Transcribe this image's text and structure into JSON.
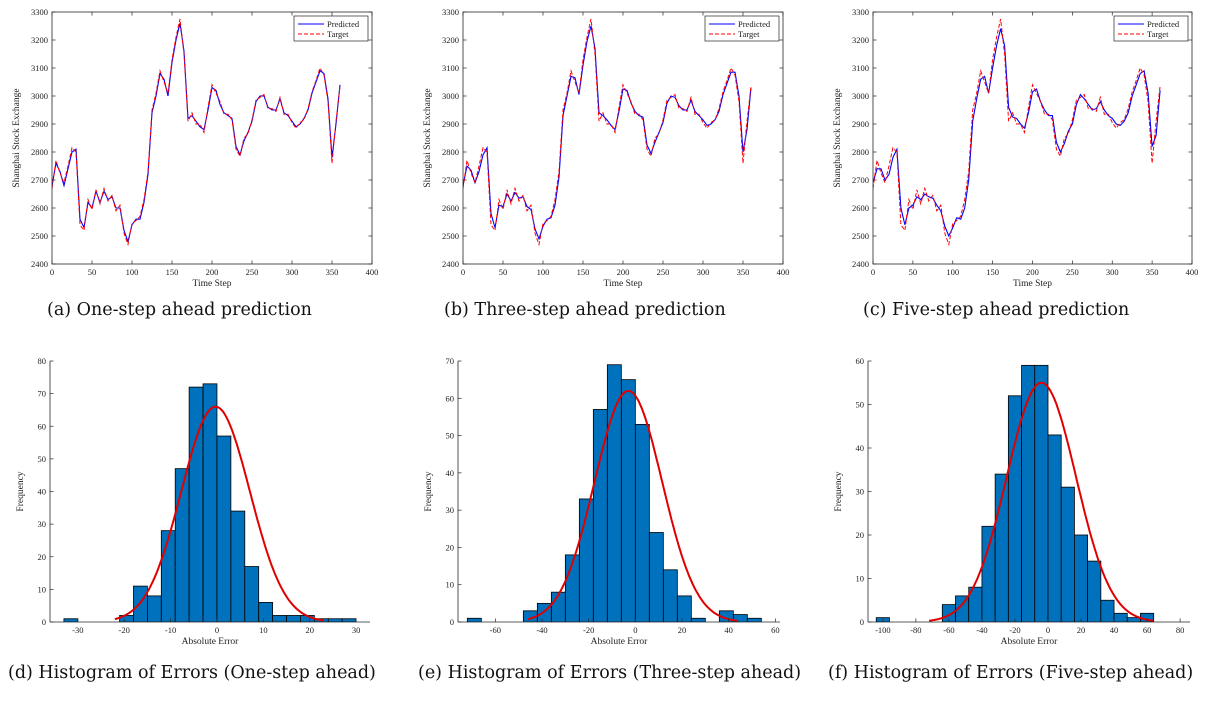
{
  "chart_data": [
    {
      "id": "a",
      "type": "line",
      "caption": "(a) One-step ahead prediction",
      "xlabel": "Time Step",
      "ylabel": "Shanghai Stock Exchange",
      "xlim": [
        0,
        400
      ],
      "ylim": [
        2400,
        3300
      ],
      "xticks": [
        0,
        50,
        100,
        150,
        200,
        250,
        300,
        350,
        400
      ],
      "yticks": [
        2400,
        2500,
        2600,
        2700,
        2800,
        2900,
        3000,
        3100,
        3200,
        3300
      ],
      "legend_position": "top-right",
      "box": true,
      "x": [
        0,
        5,
        10,
        15,
        20,
        25,
        30,
        35,
        40,
        45,
        50,
        55,
        60,
        65,
        70,
        75,
        80,
        85,
        90,
        95,
        100,
        105,
        110,
        115,
        120,
        125,
        130,
        135,
        140,
        145,
        150,
        155,
        160,
        165,
        170,
        175,
        180,
        185,
        190,
        195,
        200,
        205,
        210,
        215,
        220,
        225,
        230,
        235,
        240,
        245,
        250,
        255,
        260,
        265,
        270,
        275,
        280,
        285,
        290,
        295,
        300,
        305,
        310,
        315,
        320,
        325,
        330,
        335,
        340,
        345,
        350,
        355,
        360
      ],
      "series": [
        {
          "name": "Predicted",
          "color": "#0000ff",
          "dash": "",
          "values": [
            2680,
            2760,
            2730,
            2680,
            2740,
            2800,
            2810,
            2560,
            2530,
            2620,
            2600,
            2660,
            2620,
            2660,
            2630,
            2640,
            2600,
            2600,
            2520,
            2480,
            2540,
            2560,
            2560,
            2620,
            2720,
            2940,
            3000,
            3080,
            3060,
            3000,
            3120,
            3200,
            3260,
            3160,
            2920,
            2930,
            2910,
            2890,
            2880,
            2950,
            3030,
            3020,
            2970,
            2940,
            2930,
            2920,
            2820,
            2790,
            2840,
            2870,
            2910,
            2980,
            3000,
            3000,
            2960,
            2950,
            2950,
            2990,
            2940,
            2930,
            2910,
            2890,
            2900,
            2920,
            2950,
            3010,
            3050,
            3090,
            3080,
            2990,
            2780,
            2900,
            3040
          ]
        },
        {
          "name": "Target",
          "color": "#ff0000",
          "dash": "4,2",
          "values": [
            2670,
            2770,
            2725,
            2690,
            2750,
            2815,
            2800,
            2540,
            2520,
            2630,
            2595,
            2665,
            2615,
            2670,
            2625,
            2645,
            2590,
            2610,
            2510,
            2470,
            2545,
            2555,
            2570,
            2630,
            2730,
            2950,
            3010,
            3090,
            3050,
            3010,
            3130,
            3210,
            3275,
            3150,
            2910,
            2940,
            2900,
            2900,
            2870,
            2960,
            3040,
            3010,
            2980,
            2935,
            2935,
            2915,
            2810,
            2785,
            2850,
            2865,
            2915,
            2985,
            2995,
            3005,
            2955,
            2955,
            2945,
            2995,
            2935,
            2935,
            2905,
            2885,
            2905,
            2915,
            2955,
            3015,
            3055,
            3100,
            3075,
            2980,
            2760,
            2910,
            3035
          ]
        }
      ]
    },
    {
      "id": "b",
      "type": "line",
      "caption": "(b) Three-step ahead prediction",
      "xlabel": "Time Step",
      "ylabel": "Shanghai Stock Exchange",
      "xlim": [
        0,
        400
      ],
      "ylim": [
        2400,
        3300
      ],
      "xticks": [
        0,
        50,
        100,
        150,
        200,
        250,
        300,
        350,
        400
      ],
      "yticks": [
        2400,
        2500,
        2600,
        2700,
        2800,
        2900,
        3000,
        3100,
        3200,
        3300
      ],
      "legend_position": "top-right",
      "box": true,
      "x": [
        0,
        5,
        10,
        15,
        20,
        25,
        30,
        35,
        40,
        45,
        50,
        55,
        60,
        65,
        70,
        75,
        80,
        85,
        90,
        95,
        100,
        105,
        110,
        115,
        120,
        125,
        130,
        135,
        140,
        145,
        150,
        155,
        160,
        165,
        170,
        175,
        180,
        185,
        190,
        195,
        200,
        205,
        210,
        215,
        220,
        225,
        230,
        235,
        240,
        245,
        250,
        255,
        260,
        265,
        270,
        275,
        280,
        285,
        290,
        295,
        300,
        305,
        310,
        315,
        320,
        325,
        330,
        335,
        340,
        345,
        350,
        355,
        360
      ],
      "series": [
        {
          "name": "Predicted",
          "color": "#0000ff",
          "dash": "",
          "values": [
            2680,
            2750,
            2735,
            2690,
            2730,
            2790,
            2815,
            2580,
            2530,
            2610,
            2605,
            2650,
            2625,
            2655,
            2635,
            2640,
            2605,
            2595,
            2525,
            2490,
            2535,
            2560,
            2565,
            2610,
            2710,
            2930,
            3000,
            3070,
            3065,
            3005,
            3110,
            3195,
            3250,
            3170,
            2940,
            2930,
            2915,
            2895,
            2880,
            2945,
            3025,
            3020,
            2975,
            2945,
            2930,
            2925,
            2825,
            2795,
            2835,
            2870,
            2905,
            2975,
            3000,
            2995,
            2965,
            2950,
            2950,
            2985,
            2945,
            2930,
            2915,
            2895,
            2900,
            2915,
            2945,
            3005,
            3045,
            3085,
            3085,
            3000,
            2800,
            2880,
            3030
          ]
        },
        {
          "name": "Target",
          "color": "#ff0000",
          "dash": "4,2",
          "values": [
            2670,
            2770,
            2725,
            2690,
            2750,
            2815,
            2800,
            2540,
            2520,
            2630,
            2595,
            2665,
            2615,
            2670,
            2625,
            2645,
            2590,
            2610,
            2510,
            2470,
            2545,
            2555,
            2570,
            2630,
            2730,
            2950,
            3010,
            3090,
            3050,
            3010,
            3130,
            3210,
            3275,
            3150,
            2910,
            2940,
            2900,
            2900,
            2870,
            2960,
            3040,
            3010,
            2980,
            2935,
            2935,
            2915,
            2810,
            2785,
            2850,
            2865,
            2915,
            2985,
            2995,
            3005,
            2955,
            2955,
            2945,
            2995,
            2935,
            2935,
            2905,
            2885,
            2905,
            2915,
            2955,
            3015,
            3055,
            3100,
            3075,
            2980,
            2760,
            2910,
            3035
          ]
        }
      ]
    },
    {
      "id": "c",
      "type": "line",
      "caption": "(c) Five-step ahead prediction",
      "xlabel": "Time Step",
      "ylabel": "Shanghai Stock Exchange",
      "xlim": [
        0,
        400
      ],
      "ylim": [
        2400,
        3300
      ],
      "xticks": [
        0,
        50,
        100,
        150,
        200,
        250,
        300,
        350,
        400
      ],
      "yticks": [
        2400,
        2500,
        2600,
        2700,
        2800,
        2900,
        3000,
        3100,
        3200,
        3300
      ],
      "legend_position": "top-right",
      "box": true,
      "x": [
        0,
        5,
        10,
        15,
        20,
        25,
        30,
        35,
        40,
        45,
        50,
        55,
        60,
        65,
        70,
        75,
        80,
        85,
        90,
        95,
        100,
        105,
        110,
        115,
        120,
        125,
        130,
        135,
        140,
        145,
        150,
        155,
        160,
        165,
        170,
        175,
        180,
        185,
        190,
        195,
        200,
        205,
        210,
        215,
        220,
        225,
        230,
        235,
        240,
        245,
        250,
        255,
        260,
        265,
        270,
        275,
        280,
        285,
        290,
        295,
        300,
        305,
        310,
        315,
        320,
        325,
        330,
        335,
        340,
        345,
        350,
        355,
        360
      ],
      "series": [
        {
          "name": "Predicted",
          "color": "#0000ff",
          "dash": "",
          "values": [
            2690,
            2740,
            2740,
            2700,
            2720,
            2780,
            2810,
            2600,
            2540,
            2600,
            2610,
            2640,
            2630,
            2650,
            2640,
            2635,
            2610,
            2590,
            2535,
            2500,
            2530,
            2565,
            2560,
            2600,
            2700,
            2910,
            2990,
            3060,
            3070,
            3010,
            3100,
            3180,
            3240,
            3180,
            2960,
            2925,
            2920,
            2900,
            2885,
            2940,
            3015,
            3025,
            2980,
            2950,
            2930,
            2930,
            2835,
            2800,
            2830,
            2875,
            2900,
            2970,
            3005,
            2990,
            2970,
            2950,
            2955,
            2980,
            2950,
            2930,
            2920,
            2900,
            2895,
            2910,
            2940,
            3000,
            3040,
            3080,
            3090,
            3010,
            2820,
            2860,
            3020
          ]
        },
        {
          "name": "Target",
          "color": "#ff0000",
          "dash": "4,2",
          "values": [
            2670,
            2770,
            2725,
            2690,
            2750,
            2815,
            2800,
            2540,
            2520,
            2630,
            2595,
            2665,
            2615,
            2670,
            2625,
            2645,
            2590,
            2610,
            2510,
            2470,
            2545,
            2555,
            2570,
            2630,
            2730,
            2950,
            3010,
            3090,
            3050,
            3010,
            3130,
            3210,
            3275,
            3150,
            2910,
            2940,
            2900,
            2900,
            2870,
            2960,
            3040,
            3010,
            2980,
            2935,
            2935,
            2915,
            2810,
            2785,
            2850,
            2865,
            2915,
            2985,
            2995,
            3005,
            2955,
            2955,
            2945,
            2995,
            2935,
            2935,
            2905,
            2885,
            2905,
            2915,
            2955,
            3015,
            3055,
            3100,
            3075,
            2980,
            2760,
            2910,
            3035
          ]
        }
      ]
    },
    {
      "id": "d",
      "type": "bar",
      "caption": "(d) Histogram of Errors (One-step ahead)",
      "xlabel": "Absolute Error",
      "ylabel": "Frequency",
      "xlim": [
        -36,
        33
      ],
      "ylim": [
        0,
        80
      ],
      "xticks": [
        -30,
        -20,
        -10,
        0,
        10,
        20,
        30
      ],
      "yticks": [
        0,
        10,
        20,
        30,
        40,
        50,
        60,
        70,
        80
      ],
      "box": false,
      "bar_color": "#0072bd",
      "bins": [
        [
          -33,
          -30,
          1
        ],
        [
          -21,
          -18,
          2
        ],
        [
          -18,
          -15,
          11
        ],
        [
          -15,
          -12,
          8
        ],
        [
          -12,
          -9,
          28
        ],
        [
          -9,
          -6,
          47
        ],
        [
          -6,
          -3,
          72
        ],
        [
          -3,
          0,
          73
        ],
        [
          0,
          3,
          57
        ],
        [
          3,
          6,
          34
        ],
        [
          6,
          9,
          17
        ],
        [
          9,
          12,
          6
        ],
        [
          12,
          15,
          2
        ],
        [
          15,
          18,
          2
        ],
        [
          18,
          21,
          2
        ],
        [
          21,
          24,
          1
        ],
        [
          24,
          27,
          1
        ],
        [
          27,
          30,
          1
        ]
      ],
      "fit": {
        "color": "#e00000",
        "peak": 66,
        "mean": -0.3,
        "sd": 7.4,
        "range": [
          -22,
          23
        ]
      }
    },
    {
      "id": "e",
      "type": "bar",
      "caption": "(e) Histogram of Errors (Three-step ahead)",
      "xlabel": "Absolute Error",
      "ylabel": "Frequency",
      "xlim": [
        -76,
        62
      ],
      "ylim": [
        0,
        70
      ],
      "xticks": [
        -60,
        -40,
        -20,
        0,
        20,
        40,
        60
      ],
      "yticks": [
        0,
        10,
        20,
        30,
        40,
        50,
        60,
        70
      ],
      "box": false,
      "bar_color": "#0072bd",
      "bins": [
        [
          -72,
          -66,
          1
        ],
        [
          -48,
          -42,
          3
        ],
        [
          -42,
          -36,
          5
        ],
        [
          -36,
          -30,
          8
        ],
        [
          -30,
          -24,
          18
        ],
        [
          -24,
          -18,
          33
        ],
        [
          -18,
          -12,
          57
        ],
        [
          -12,
          -6,
          69
        ],
        [
          -6,
          0,
          65
        ],
        [
          0,
          6,
          53
        ],
        [
          6,
          12,
          24
        ],
        [
          12,
          18,
          14
        ],
        [
          18,
          24,
          7
        ],
        [
          24,
          30,
          1
        ],
        [
          36,
          42,
          3
        ],
        [
          42,
          48,
          2
        ],
        [
          48,
          54,
          1
        ]
      ],
      "fit": {
        "color": "#e00000",
        "peak": 62,
        "mean": -3,
        "sd": 14.5,
        "range": [
          -46,
          44
        ]
      }
    },
    {
      "id": "f",
      "type": "bar",
      "caption": "(f) Histogram of Errors (Five-step ahead)",
      "xlabel": "Absolute Error",
      "ylabel": "Frequency",
      "xlim": [
        -109,
        86
      ],
      "ylim": [
        0,
        60
      ],
      "xticks": [
        -100,
        -80,
        -60,
        -40,
        -20,
        0,
        20,
        40,
        60,
        80
      ],
      "yticks": [
        0,
        10,
        20,
        30,
        40,
        50,
        60
      ],
      "box": false,
      "bar_color": "#0072bd",
      "bins": [
        [
          -104,
          -96,
          1
        ],
        [
          -64,
          -56,
          4
        ],
        [
          -56,
          -48,
          6
        ],
        [
          -48,
          -40,
          8
        ],
        [
          -40,
          -32,
          22
        ],
        [
          -32,
          -24,
          34
        ],
        [
          -24,
          -16,
          52
        ],
        [
          -16,
          -8,
          59
        ],
        [
          -8,
          0,
          59
        ],
        [
          0,
          8,
          43
        ],
        [
          8,
          16,
          31
        ],
        [
          16,
          24,
          20
        ],
        [
          24,
          32,
          14
        ],
        [
          32,
          40,
          5
        ],
        [
          40,
          48,
          2
        ],
        [
          48,
          56,
          1
        ],
        [
          56,
          64,
          2
        ]
      ],
      "fit": {
        "color": "#e00000",
        "peak": 55,
        "mean": -4,
        "sd": 21,
        "range": [
          -72,
          64
        ]
      }
    }
  ]
}
